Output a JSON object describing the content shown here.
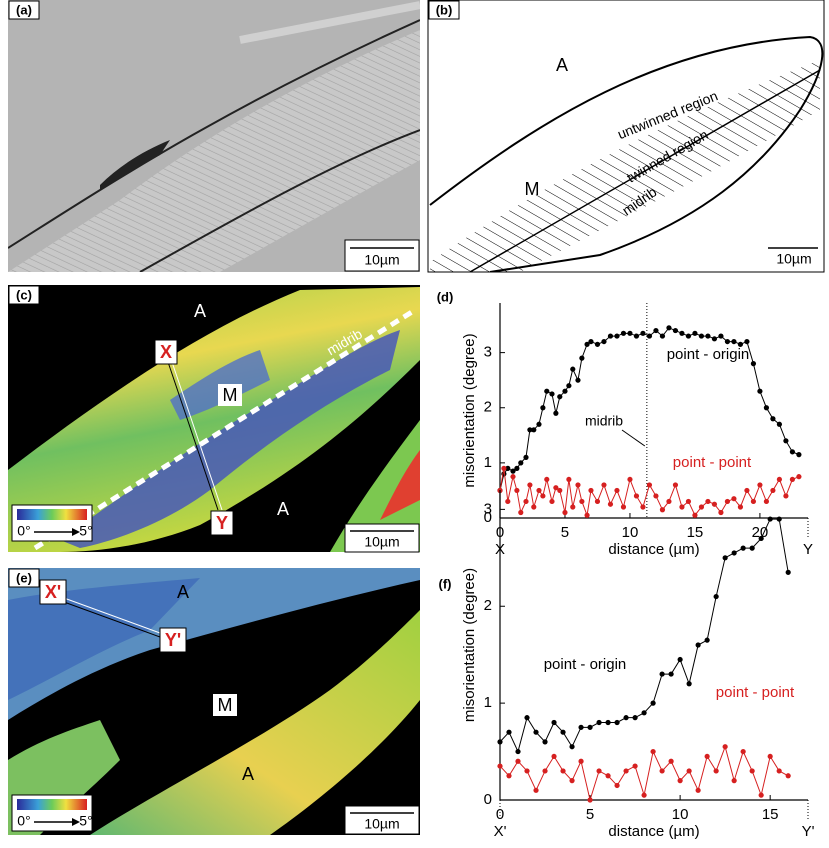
{
  "panels": [
    {
      "label": "(a)",
      "texts": [
        "10µm"
      ]
    },
    {
      "label": "(b)",
      "texts": [
        "A",
        "untwinned region",
        "twinned region",
        "M",
        "midrib",
        "10µm"
      ]
    },
    {
      "label": "(c)",
      "texts": [
        "A",
        "X",
        "midrib",
        "M",
        "Y",
        "A",
        "0°",
        "5°",
        "10µm"
      ]
    },
    {
      "label": "(e)",
      "texts": [
        "X'",
        "A",
        "Y'",
        "M",
        "A",
        "0°",
        "5°",
        "10µm"
      ]
    }
  ],
  "chart_data": [
    {
      "type": "line",
      "panel_label": "(d)",
      "xlabel": "distance (µm)",
      "ylabel": "misorientation (degree)",
      "end_labels": [
        "X",
        "Y"
      ],
      "annotations": [
        {
          "text": "midrib",
          "x": 11.3
        }
      ],
      "xlim": [
        0,
        23.7
      ],
      "ylim": [
        0,
        3.9
      ],
      "xticks": [
        0,
        5,
        10,
        15,
        20
      ],
      "yticks": [
        0,
        1,
        2,
        3
      ],
      "x": [
        0,
        0.3,
        0.6,
        1.0,
        1.3,
        1.6,
        2.0,
        2.3,
        2.6,
        3.0,
        3.3,
        3.6,
        4.0,
        4.3,
        4.6,
        5.0,
        5.3,
        5.6,
        6.0,
        6.3,
        6.7,
        7.0,
        7.5,
        8.0,
        8.5,
        9.0,
        9.5,
        10,
        10.5,
        11,
        11.5,
        12,
        12.5,
        13,
        13.5,
        14,
        14.5,
        15,
        15.5,
        16,
        16.5,
        17,
        17.5,
        18,
        18.5,
        19,
        19.5,
        20,
        20.5,
        21,
        21.5,
        22,
        22.5,
        23
      ],
      "series": [
        {
          "name": "point - origin",
          "color": "#000000",
          "values": [
            0.5,
            0.8,
            0.9,
            0.85,
            0.9,
            1.0,
            1.1,
            1.6,
            1.6,
            1.7,
            2.0,
            2.3,
            2.25,
            1.9,
            2.2,
            2.3,
            2.4,
            2.7,
            2.5,
            2.9,
            3.15,
            3.2,
            3.15,
            3.2,
            3.3,
            3.3,
            3.35,
            3.35,
            3.3,
            3.35,
            3.3,
            3.4,
            3.3,
            3.45,
            3.4,
            3.35,
            3.3,
            3.35,
            3.3,
            3.3,
            3.25,
            3.3,
            3.2,
            3.2,
            3.15,
            3.2,
            2.8,
            2.3,
            2.0,
            1.8,
            1.7,
            1.4,
            1.2,
            1.15
          ]
        },
        {
          "name": "point - point",
          "color": "#d62020",
          "values": [
            0.5,
            0.9,
            0.3,
            0.75,
            0.5,
            0.1,
            0.3,
            0.6,
            0.2,
            0.5,
            0.4,
            0.7,
            0.3,
            0.55,
            0.5,
            0.1,
            0.7,
            0.2,
            0.6,
            0.3,
            0.05,
            0.5,
            0.3,
            0.6,
            0.25,
            0.5,
            0.2,
            0.7,
            0.4,
            0.2,
            0.6,
            0.4,
            0.15,
            0.3,
            0.6,
            0.2,
            0.3,
            0.05,
            0.2,
            0.3,
            0.25,
            0.1,
            0.3,
            0.35,
            0.2,
            0.5,
            0.3,
            0.6,
            0.3,
            0.5,
            0.7,
            0.4,
            0.7,
            0.75
          ]
        }
      ]
    },
    {
      "type": "line",
      "panel_label": "(f)",
      "xlabel": "distance (µm)",
      "ylabel": "misorientation (degree)",
      "end_labels": [
        "X'",
        "Y'"
      ],
      "xlim": [
        0,
        17.1
      ],
      "ylim": [
        0,
        3.2
      ],
      "xticks": [
        0,
        5,
        10,
        15
      ],
      "yticks": [
        0,
        1,
        2,
        3
      ],
      "x": [
        0,
        0.5,
        1,
        1.5,
        2,
        2.5,
        3,
        3.5,
        4,
        4.5,
        5,
        5.5,
        6,
        6.5,
        7,
        7.5,
        8,
        8.5,
        9,
        9.5,
        10,
        10.5,
        11,
        11.5,
        12,
        12.5,
        13,
        13.5,
        14,
        14.5,
        15,
        15.5,
        16
      ],
      "series": [
        {
          "name": "point - origin",
          "color": "#000000",
          "values": [
            0.6,
            0.7,
            0.5,
            0.85,
            0.7,
            0.6,
            0.8,
            0.7,
            0.55,
            0.75,
            0.75,
            0.8,
            0.8,
            0.8,
            0.85,
            0.85,
            0.9,
            1.0,
            1.3,
            1.3,
            1.45,
            1.2,
            1.6,
            1.65,
            2.1,
            2.5,
            2.55,
            2.6,
            2.6,
            2.7,
            2.9,
            2.9,
            2.35
          ]
        },
        {
          "name": "point - point",
          "color": "#d62020",
          "values": [
            0.35,
            0.25,
            0.4,
            0.3,
            0.1,
            0.3,
            0.45,
            0.3,
            0.2,
            0.4,
            0.0,
            0.3,
            0.25,
            0.15,
            0.3,
            0.35,
            0.05,
            0.5,
            0.3,
            0.4,
            0.2,
            0.3,
            0.1,
            0.45,
            0.3,
            0.55,
            0.2,
            0.5,
            0.3,
            0.05,
            0.45,
            0.3,
            0.25
          ]
        }
      ]
    }
  ]
}
